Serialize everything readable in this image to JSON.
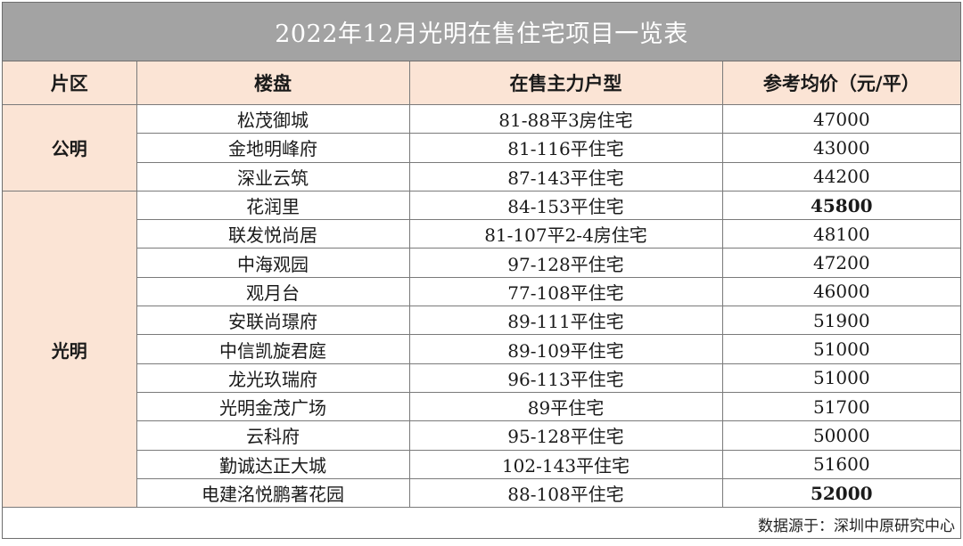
{
  "title": "2022年12月光明在售住宅项目一览表",
  "headers": {
    "district": "片区",
    "project": "楼盘",
    "unit_type": "在售主力户型",
    "avg_price": "参考均价（元/平）"
  },
  "groups": [
    {
      "district": "公明",
      "rows": [
        {
          "project": "松茂御城",
          "unit_type": "81-88平3房住宅",
          "price": "47000",
          "bold": false
        },
        {
          "project": "金地明峰府",
          "unit_type": "81-116平住宅",
          "price": "43000",
          "bold": false
        },
        {
          "project": "深业云筑",
          "unit_type": "87-143平住宅",
          "price": "44200",
          "bold": false
        }
      ]
    },
    {
      "district": "光明",
      "rows": [
        {
          "project": "花润里",
          "unit_type": "84-153平住宅",
          "price": "45800",
          "bold": true
        },
        {
          "project": "联发悦尚居",
          "unit_type": "81-107平2-4房住宅",
          "price": "48100",
          "bold": false
        },
        {
          "project": "中海观园",
          "unit_type": "97-128平住宅",
          "price": "47200",
          "bold": false
        },
        {
          "project": "观月台",
          "unit_type": "77-108平住宅",
          "price": "46000",
          "bold": false
        },
        {
          "project": "安联尚璟府",
          "unit_type": "89-111平住宅",
          "price": "51900",
          "bold": false
        },
        {
          "project": "中信凯旋君庭",
          "unit_type": "89-109平住宅",
          "price": "51000",
          "bold": false
        },
        {
          "project": "龙光玖瑞府",
          "unit_type": "96-113平住宅",
          "price": "51000",
          "bold": false
        },
        {
          "project": "光明金茂广场",
          "unit_type": "89平住宅",
          "price": "51700",
          "bold": false
        },
        {
          "project": "云科府",
          "unit_type": "95-128平住宅",
          "price": "50000",
          "bold": false
        },
        {
          "project": "勤诚达正大城",
          "unit_type": "102-143平住宅",
          "price": "51600",
          "bold": false
        },
        {
          "project": "电建洺悦鹏著花园",
          "unit_type": "88-108平住宅",
          "price": "52000",
          "bold": true
        }
      ]
    }
  ],
  "source": "数据源于：深圳中原研究中心",
  "colors": {
    "title_bg": "#a3a3a3",
    "header_bg": "#fbe4d5",
    "border": "#7a7a7a"
  }
}
